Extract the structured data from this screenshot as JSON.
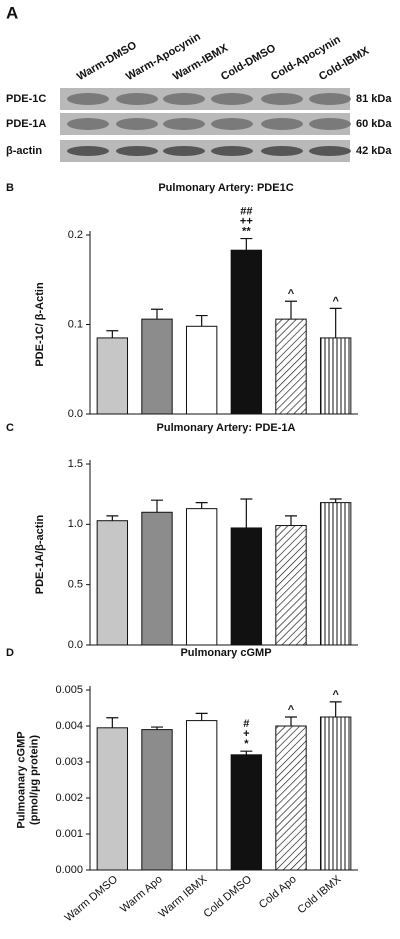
{
  "blot": {
    "panel": "A",
    "lanes": [
      "Warm-DMSO",
      "Warm-Apocynin",
      "Warm-IBMX",
      "Cold-DMSO",
      "Cold-Apocynin",
      "Cold-IBMX"
    ],
    "rows": [
      {
        "label": "PDE-1C",
        "size": "81 kDa"
      },
      {
        "label": "PDE-1A",
        "size": "60 kDa"
      },
      {
        "label": "β-actin",
        "size": "42 kDa"
      }
    ]
  },
  "chart_data": [
    {
      "type": "bar",
      "panel": "B",
      "title": "Pulmonary Artery: PDE1C",
      "ylabel": "PDE-1C/ β-Actin",
      "values": [
        0.085,
        0.106,
        0.098,
        0.183,
        0.106,
        0.085
      ],
      "errors": [
        0.008,
        0.011,
        0.012,
        0.013,
        0.02,
        0.033
      ],
      "bar_fills": [
        "#c6c6c6",
        "#8c8c8c",
        "#ffffff",
        "#111111",
        "diagonal",
        "vertical"
      ],
      "annotations": [
        [],
        [],
        [],
        [
          "##",
          "++",
          "**"
        ],
        [
          "^"
        ],
        [
          "^"
        ]
      ],
      "ylim": [
        0,
        0.2
      ],
      "yticks": [
        {
          "value": 0,
          "label": "0.0"
        },
        0.1,
        0.2
      ]
    },
    {
      "type": "bar",
      "panel": "C",
      "title": "Pulmonary Artery: PDE-1A",
      "ylabel": "PDE-1A/β-actin",
      "values": [
        1.03,
        1.1,
        1.13,
        0.97,
        0.99,
        1.18
      ],
      "errors": [
        0.04,
        0.1,
        0.05,
        0.24,
        0.08,
        0.03
      ],
      "bar_fills": [
        "#c6c6c6",
        "#8c8c8c",
        "#ffffff",
        "#111111",
        "diagonal",
        "vertical"
      ],
      "annotations": [
        [],
        [],
        [],
        [],
        [],
        []
      ],
      "ylim": [
        0,
        1.5
      ],
      "yticks": [
        {
          "value": 0,
          "label": "0.0"
        },
        0.5,
        {
          "value": 1,
          "label": "1.0"
        },
        1.5
      ]
    },
    {
      "type": "bar",
      "panel": "D",
      "title": "Pulmonary cGMP",
      "ylabel": [
        "Pulmoanary cGMP",
        "(pmol/µg protein)"
      ],
      "categories": [
        "Warm DMSO",
        "Warm Apo",
        "Warm IBMX",
        "Cold DMSO",
        "Cold Apo",
        "Cold IBMX"
      ],
      "values": [
        0.00395,
        0.0039,
        0.00415,
        0.0032,
        0.004,
        0.00425
      ],
      "errors": [
        0.00028,
        7e-05,
        0.0002,
        0.0001,
        0.00025,
        0.00042
      ],
      "bar_fills": [
        "#c6c6c6",
        "#8c8c8c",
        "#ffffff",
        "#111111",
        "diagonal",
        "vertical"
      ],
      "annotations": [
        [],
        [],
        [],
        [
          "#",
          "+",
          "*"
        ],
        [
          "^"
        ],
        [
          "^"
        ]
      ],
      "ylim": [
        0,
        0.005
      ],
      "yticks": [
        {
          "value": 0,
          "label": "0.000"
        },
        {
          "value": 0.001,
          "label": "0.001"
        },
        {
          "value": 0.002,
          "label": "0.002"
        },
        {
          "value": 0.003,
          "label": "0.003"
        },
        {
          "value": 0.004,
          "label": "0.004"
        },
        {
          "value": 0.005,
          "label": "0.005"
        }
      ]
    }
  ]
}
